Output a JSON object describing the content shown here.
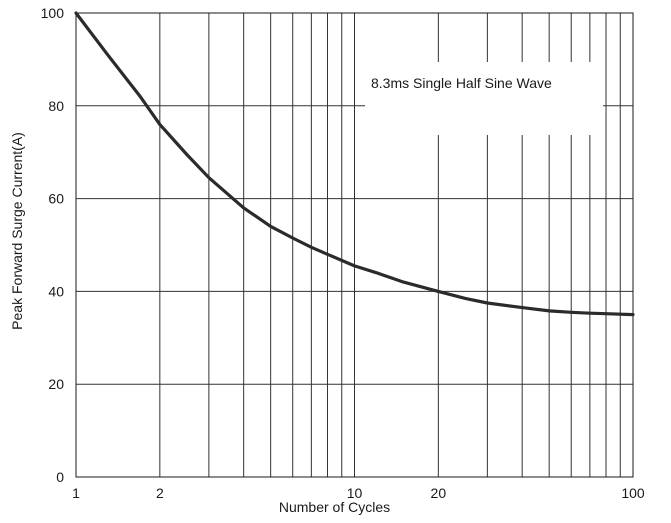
{
  "chart_data": {
    "type": "line",
    "x_scale": "log",
    "xlim": [
      1,
      100
    ],
    "ylim": [
      0,
      100
    ],
    "xlabel": "Number of Cycles",
    "ylabel": "Peak Forward Surge Current(A)",
    "x_tick_labels": [
      {
        "value": 1,
        "label": "1"
      },
      {
        "value": 2,
        "label": "2"
      },
      {
        "value": 10,
        "label": "10"
      },
      {
        "value": 20,
        "label": "20"
      },
      {
        "value": 100,
        "label": "100"
      }
    ],
    "y_tick_labels": [
      {
        "value": 0,
        "label": "0"
      },
      {
        "value": 20,
        "label": "20"
      },
      {
        "value": 40,
        "label": "40"
      },
      {
        "value": 60,
        "label": "60"
      },
      {
        "value": 80,
        "label": "80"
      },
      {
        "value": 100,
        "label": "100"
      }
    ],
    "grid": true,
    "annotation": "8.3ms Single Half Sine Wave",
    "series": [
      {
        "color": "#2b2b2b",
        "points": [
          [
            1,
            100
          ],
          [
            1.3,
            91
          ],
          [
            1.7,
            82
          ],
          [
            2,
            76
          ],
          [
            2.5,
            69.5
          ],
          [
            3,
            64.5
          ],
          [
            4,
            58
          ],
          [
            5,
            54
          ],
          [
            6,
            51.5
          ],
          [
            7,
            49.5
          ],
          [
            8,
            48
          ],
          [
            10,
            45.5
          ],
          [
            12,
            44
          ],
          [
            15,
            42
          ],
          [
            20,
            40
          ],
          [
            25,
            38.5
          ],
          [
            30,
            37.5
          ],
          [
            40,
            36.5
          ],
          [
            50,
            35.8
          ],
          [
            60,
            35.5
          ],
          [
            70,
            35.3
          ],
          [
            80,
            35.2
          ],
          [
            100,
            35
          ]
        ]
      }
    ]
  }
}
